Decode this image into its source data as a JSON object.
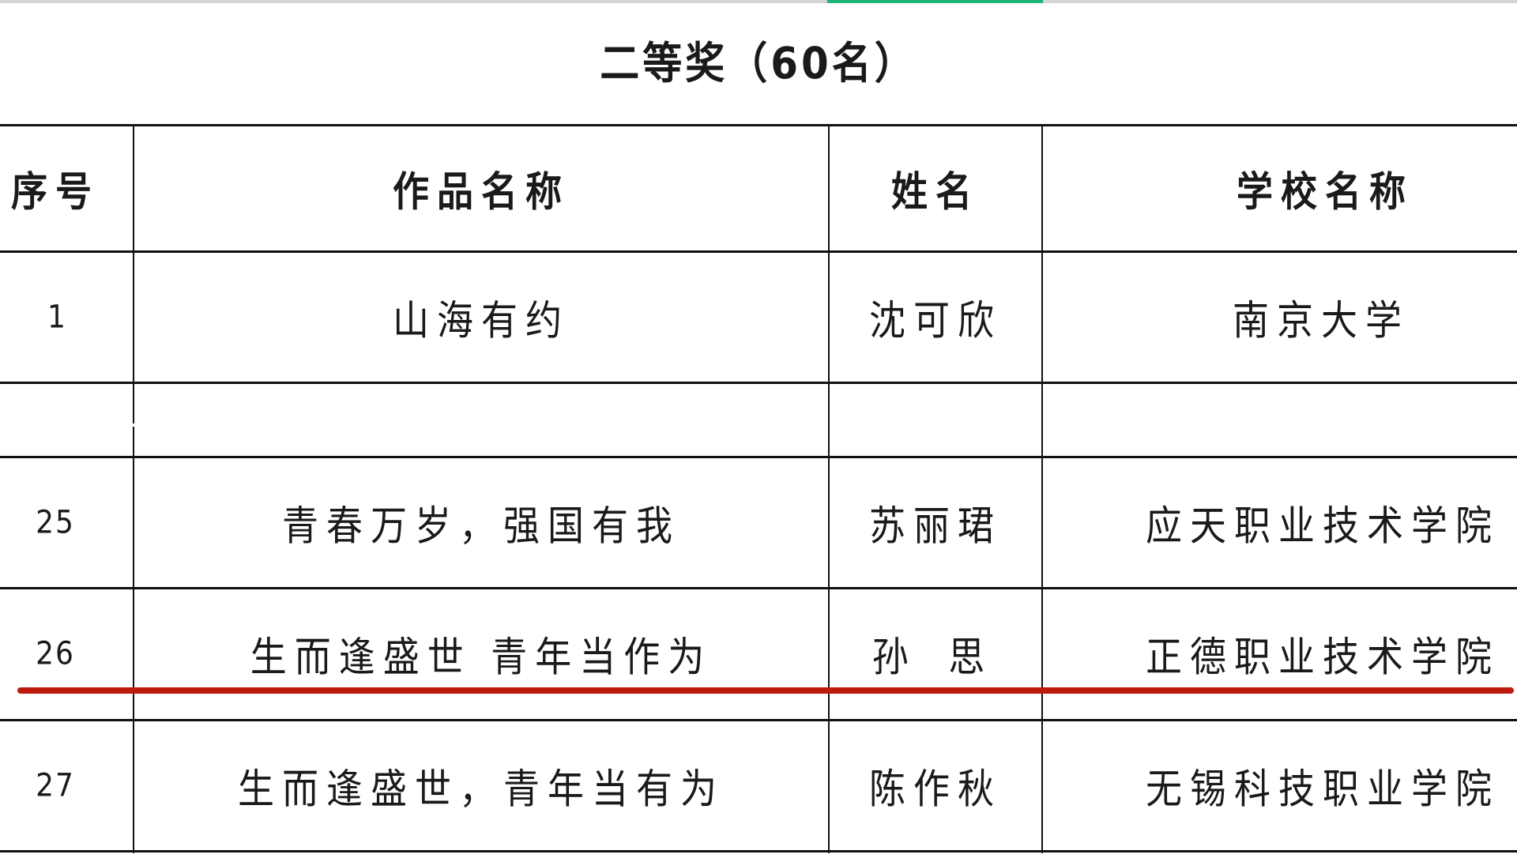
{
  "title": "二等奖（60名）",
  "table": {
    "headers": [
      "序号",
      "作品名称",
      "姓名",
      "学校名称"
    ],
    "rows": [
      {
        "no": "1",
        "work": "山海有约",
        "name": "沈可欣",
        "school": "南京大学"
      },
      {
        "no": "25",
        "work": "青春万岁，强国有我",
        "name": "苏丽珺",
        "school": "应天职业技术学院"
      },
      {
        "no": "26",
        "work": "生而逢盛世 青年当作为",
        "name": "孙 思",
        "school": "正德职业技术学院"
      },
      {
        "no": "27",
        "work": "生而逢盛世，青年当有为",
        "name": "陈作秋",
        "school": "无锡科技职业学院"
      }
    ]
  },
  "colors": {
    "tab_indicator": "#1fb57a",
    "underline_annotation": "#bc1a0c"
  }
}
